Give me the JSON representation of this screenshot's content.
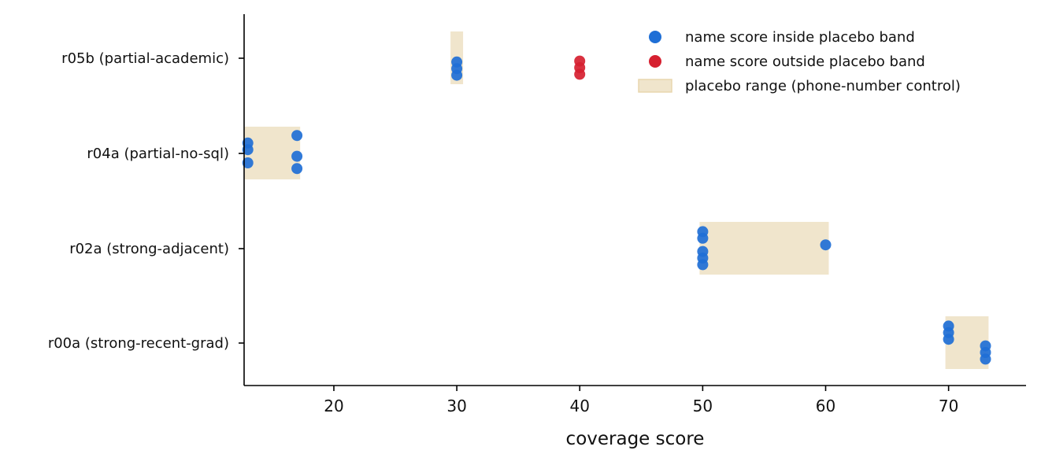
{
  "chart_data": {
    "type": "scatter",
    "title": "",
    "xlabel": "coverage score",
    "ylabel": "",
    "xlim": [
      12.7,
      76.3
    ],
    "xticks": [
      20,
      30,
      40,
      50,
      60,
      70
    ],
    "categories": [
      "r05b (partial-academic)",
      "r04a (partial-no-sql)",
      "r02a (strong-adjacent)",
      "r00a (strong-recent-grad)"
    ],
    "placebo_ranges": [
      {
        "category": "r05b (partial-academic)",
        "min": 30,
        "max": 30
      },
      {
        "category": "r04a (partial-no-sql)",
        "min": 13,
        "max": 17
      },
      {
        "category": "r02a (strong-adjacent)",
        "min": 50,
        "max": 60
      },
      {
        "category": "r00a (strong-recent-grad)",
        "min": 70,
        "max": 73
      }
    ],
    "series": [
      {
        "name": "name score inside placebo band",
        "color": "#1f6fd6",
        "points": [
          {
            "category": "r05b (partial-academic)",
            "x": 30,
            "jitter": -0.18
          },
          {
            "category": "r05b (partial-academic)",
            "x": 30,
            "jitter": -0.11
          },
          {
            "category": "r05b (partial-academic)",
            "x": 30,
            "jitter": -0.04
          },
          {
            "category": "r04a (partial-no-sql)",
            "x": 13,
            "jitter": 0.11
          },
          {
            "category": "r04a (partial-no-sql)",
            "x": 13,
            "jitter": 0.04
          },
          {
            "category": "r04a (partial-no-sql)",
            "x": 13,
            "jitter": -0.1
          },
          {
            "category": "r04a (partial-no-sql)",
            "x": 17,
            "jitter": 0.19
          },
          {
            "category": "r04a (partial-no-sql)",
            "x": 17,
            "jitter": -0.03
          },
          {
            "category": "r04a (partial-no-sql)",
            "x": 17,
            "jitter": -0.16
          },
          {
            "category": "r02a (strong-adjacent)",
            "x": 50,
            "jitter": 0.18
          },
          {
            "category": "r02a (strong-adjacent)",
            "x": 50,
            "jitter": 0.11
          },
          {
            "category": "r02a (strong-adjacent)",
            "x": 50,
            "jitter": -0.03
          },
          {
            "category": "r02a (strong-adjacent)",
            "x": 50,
            "jitter": -0.1
          },
          {
            "category": "r02a (strong-adjacent)",
            "x": 50,
            "jitter": -0.17
          },
          {
            "category": "r02a (strong-adjacent)",
            "x": 60,
            "jitter": 0.04
          },
          {
            "category": "r00a (strong-recent-grad)",
            "x": 70,
            "jitter": 0.18
          },
          {
            "category": "r00a (strong-recent-grad)",
            "x": 70,
            "jitter": 0.11
          },
          {
            "category": "r00a (strong-recent-grad)",
            "x": 70,
            "jitter": 0.04
          },
          {
            "category": "r00a (strong-recent-grad)",
            "x": 73,
            "jitter": -0.03
          },
          {
            "category": "r00a (strong-recent-grad)",
            "x": 73,
            "jitter": -0.1
          },
          {
            "category": "r00a (strong-recent-grad)",
            "x": 73,
            "jitter": -0.17
          }
        ]
      },
      {
        "name": "name score outside placebo band",
        "color": "#d62030",
        "points": [
          {
            "category": "r05b (partial-academic)",
            "x": 40,
            "jitter": -0.03
          },
          {
            "category": "r05b (partial-academic)",
            "x": 40,
            "jitter": -0.1
          },
          {
            "category": "r05b (partial-academic)",
            "x": 40,
            "jitter": -0.17
          }
        ]
      }
    ],
    "legend": {
      "placement": "top-right",
      "entries": [
        {
          "label": "name score inside placebo band",
          "kind": "marker",
          "color": "#1f6fd6"
        },
        {
          "label": "name score outside placebo band",
          "kind": "marker",
          "color": "#d62030"
        },
        {
          "label": "placebo range (phone-number control)",
          "kind": "patch",
          "color": "#f0e5cc"
        }
      ]
    },
    "band_color": "#f0e5cc",
    "grid": false
  }
}
